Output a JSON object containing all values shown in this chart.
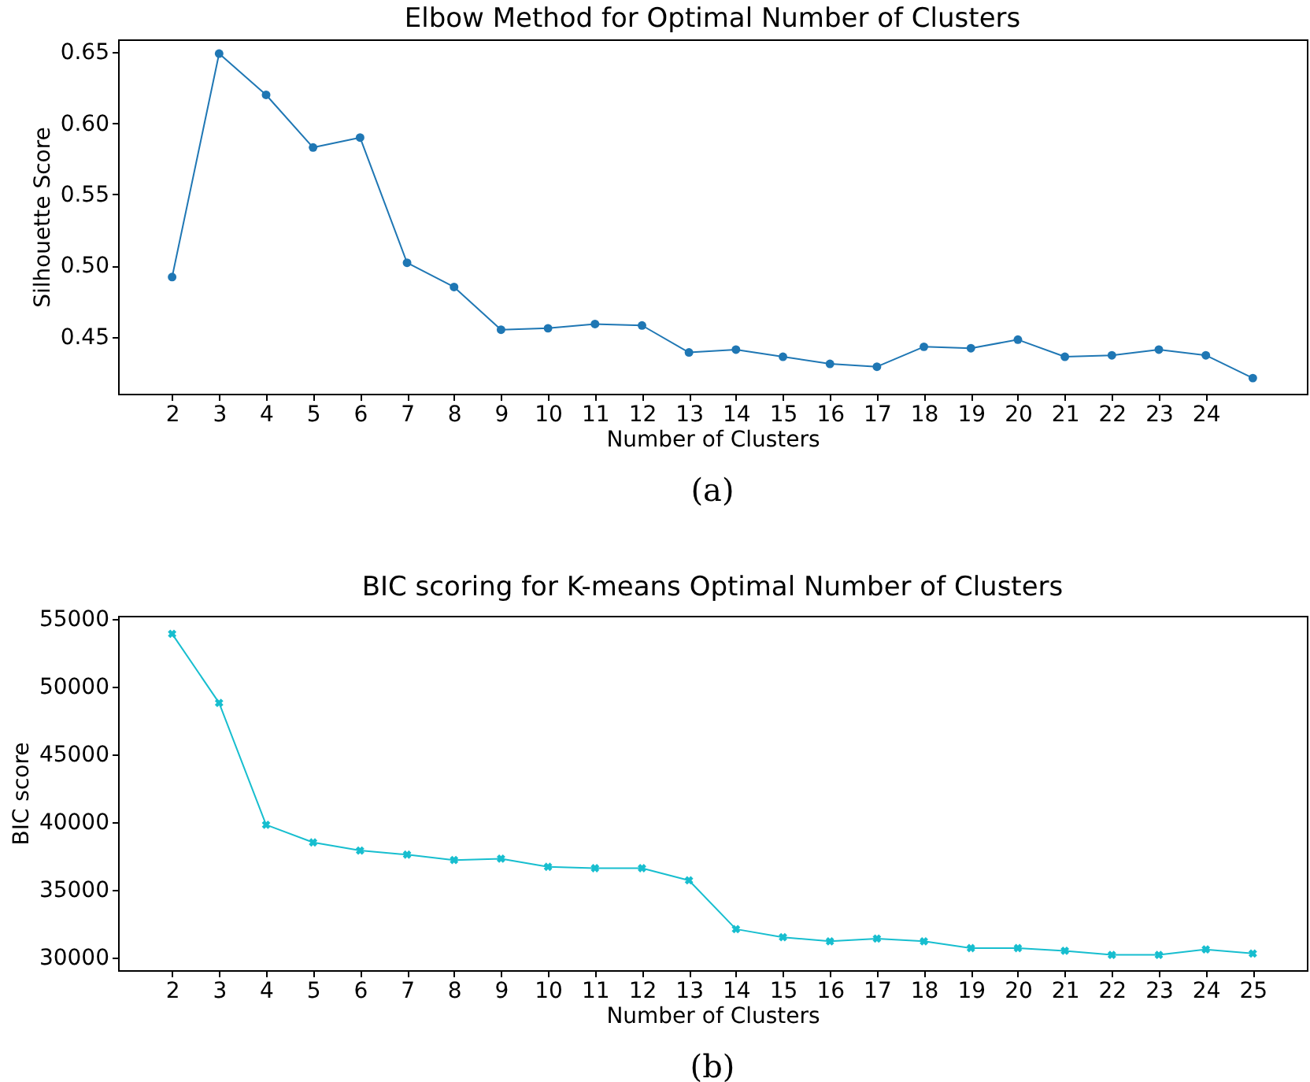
{
  "chart_data": [
    {
      "type": "line",
      "title": "Elbow Method for Optimal Number of Clusters",
      "xlabel": "Number of Clusters",
      "ylabel": "Silhouette Score",
      "x": [
        2,
        3,
        4,
        5,
        6,
        7,
        8,
        9,
        10,
        11,
        12,
        13,
        14,
        15,
        16,
        17,
        18,
        19,
        20,
        21,
        22,
        23,
        24,
        25
      ],
      "series": [
        {
          "color": "#1f77b4",
          "values": [
            0.492,
            0.649,
            0.62,
            0.583,
            0.59,
            0.502,
            0.485,
            0.455,
            0.456,
            0.459,
            0.458,
            0.439,
            0.441,
            0.436,
            0.431,
            0.429,
            0.443,
            0.442,
            0.448,
            0.436,
            0.437,
            0.441,
            0.437,
            0.421
          ]
        }
      ],
      "xlim": [
        0.85,
        26.15
      ],
      "xticks": [
        2,
        3,
        4,
        5,
        6,
        7,
        8,
        9,
        10,
        11,
        12,
        13,
        14,
        15,
        16,
        17,
        18,
        19,
        20,
        21,
        22,
        23,
        24
      ],
      "ylim": [
        0.41,
        0.659
      ],
      "yticks": [
        0.45,
        {
          "value": 0.5,
          "label": "0.50"
        },
        0.55,
        {
          "value": 0.6,
          "label": "0.60"
        },
        0.65
      ],
      "marker": "circle",
      "line_style": "solid",
      "grid": false,
      "annotations": [
        "(a)"
      ]
    },
    {
      "type": "line",
      "title": "BIC scoring for K-means Optimal Number of Clusters",
      "xlabel": "Number of Clusters",
      "ylabel": "BIC score",
      "x": [
        2,
        3,
        4,
        5,
        6,
        7,
        8,
        9,
        10,
        11,
        12,
        13,
        14,
        15,
        16,
        17,
        18,
        19,
        20,
        21,
        22,
        23,
        24,
        25
      ],
      "series": [
        {
          "color": "#17becf",
          "values": [
            53900,
            48800,
            39800,
            38500,
            37900,
            37600,
            37200,
            37300,
            36700,
            36600,
            36600,
            35700,
            32100,
            31500,
            31200,
            31400,
            31200,
            30700,
            30700,
            30500,
            30200,
            30200,
            30600,
            30300
          ]
        }
      ],
      "xlim": [
        0.85,
        26.15
      ],
      "xticks": [
        2,
        3,
        4,
        5,
        6,
        7,
        8,
        9,
        10,
        11,
        12,
        13,
        14,
        15,
        16,
        17,
        18,
        19,
        20,
        21,
        22,
        23,
        24,
        25
      ],
      "ylim": [
        29070,
        55230
      ],
      "yticks": [
        30000,
        35000,
        40000,
        45000,
        50000,
        55000
      ],
      "marker": "cross",
      "line_style": "solid",
      "grid": false,
      "annotations": [
        "(b)"
      ]
    }
  ]
}
